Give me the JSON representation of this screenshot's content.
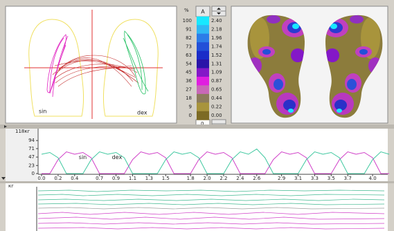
{
  "top_panel": {
    "left_label": "sin",
    "right_label": "dex"
  },
  "scale": {
    "unit": "%",
    "button": "A",
    "percent": [
      "100",
      "91",
      "82",
      "73",
      "63",
      "54",
      "45",
      "36",
      "27",
      "18",
      "9",
      "0"
    ],
    "values": [
      "2.40",
      "2.18",
      "1.96",
      "1.74",
      "1.52",
      "1.31",
      "1.09",
      "0.87",
      "0.65",
      "0.44",
      "0.22",
      "0.00"
    ],
    "colors": [
      "#18e8ff",
      "#30b8f4",
      "#2c7ce8",
      "#2250d8",
      "#1a2cc8",
      "#2a14a8",
      "#8418c8",
      "#e01ee0",
      "#c868b8",
      "#8c7c5c",
      "#a8943c",
      "#7c6a24"
    ],
    "bottom": "0"
  },
  "chart_data": {
    "type": "line",
    "y_label": "118кг",
    "x": [
      0.0,
      0.1,
      0.2,
      0.3,
      0.4,
      0.5,
      0.6,
      0.7,
      0.8,
      0.9,
      1.0,
      1.1,
      1.2,
      1.3,
      1.4,
      1.5,
      1.6,
      1.7,
      1.8,
      1.9,
      2.0,
      2.1,
      2.2,
      2.3,
      2.4,
      2.5,
      2.6,
      2.7,
      2.8,
      2.9,
      3.0,
      3.1,
      3.2,
      3.3,
      3.4,
      3.5,
      3.6,
      3.7,
      3.8,
      3.9,
      4.0,
      4.1,
      4.2
    ],
    "series": [
      {
        "name": "sin",
        "color": "#d040c8",
        "values": [
          0,
          0,
          40,
          62,
          55,
          60,
          45,
          0,
          0,
          0,
          0,
          40,
          62,
          55,
          60,
          45,
          0,
          0,
          0,
          40,
          62,
          55,
          60,
          45,
          0,
          0,
          0,
          0,
          40,
          62,
          55,
          60,
          45,
          0,
          0,
          0,
          40,
          62,
          55,
          60,
          45,
          0,
          0
        ]
      },
      {
        "name": "dex",
        "color": "#40c8a0",
        "values": [
          55,
          60,
          45,
          0,
          0,
          0,
          40,
          62,
          55,
          60,
          45,
          0,
          0,
          0,
          0,
          40,
          62,
          55,
          60,
          45,
          0,
          0,
          0,
          40,
          62,
          55,
          70,
          45,
          0,
          0,
          0,
          0,
          40,
          62,
          55,
          60,
          45,
          0,
          0,
          0,
          40,
          62,
          55
        ]
      }
    ],
    "xlim": [
      0,
      4.2
    ],
    "ylim": [
      0,
      118
    ],
    "xticks": [
      0.0,
      0.2,
      0.4,
      0.7,
      0.9,
      1.1,
      1.3,
      1.5,
      1.8,
      2.0,
      2.2,
      2.4,
      2.6,
      2.9,
      3.1,
      3.3,
      3.5,
      3.7,
      4.0
    ],
    "yticks": [
      94,
      71,
      47,
      23,
      0
    ],
    "grid": false
  },
  "bottom_panel": {
    "unit": "кг"
  }
}
